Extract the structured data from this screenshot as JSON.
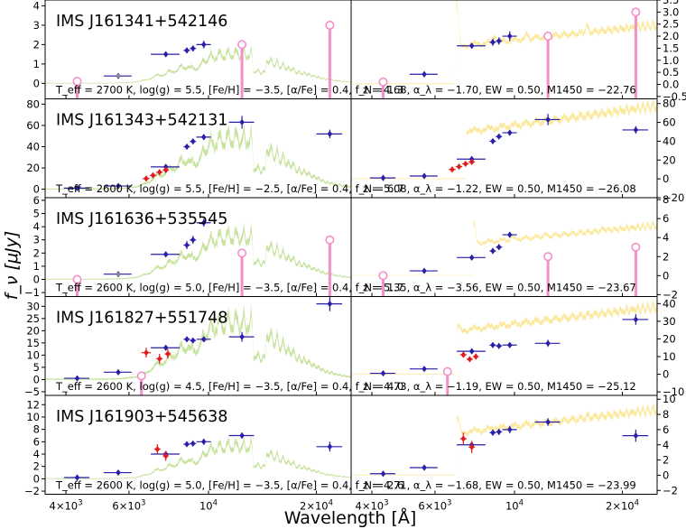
{
  "figure": {
    "xlabel": "Wavelength [Å]",
    "ylabel": "f_ν [μJy]",
    "xticks": [
      {
        "value": 4000,
        "base": "4×10",
        "exp": "3"
      },
      {
        "value": 6000,
        "base": "6×10",
        "exp": "3"
      },
      {
        "value": 10000,
        "base": "10",
        "exp": "4"
      },
      {
        "value": 20000,
        "base": "2×10",
        "exp": "4"
      }
    ],
    "xlim": [
      3500,
      25000
    ],
    "xscale": "log",
    "colors": {
      "bd_model": "#c9e3a0",
      "qso_model": "#fbe9a0",
      "detection": "#2a1fa8",
      "red_detection": "#e31a1c",
      "upper_limit": "#f48fc7",
      "grey_point": "#8a8a8a"
    }
  },
  "chart_data": [
    {
      "type": "scatter",
      "source": "IMS J161341+542146",
      "left_label": "T_eff = 2700 K, log(g) = 5.5, [Fe/H] = −3.5, [α/Fe] = 0.4, f_N = 1.3",
      "right_label": "z = 4.68, α_λ = −1.70, EW = 0.50, M1450 = −22.76",
      "left_ylim": [
        -0.8,
        4.3
      ],
      "left_yticks": [
        0,
        1,
        2,
        3,
        4
      ],
      "right_ylim": [
        -0.6,
        3.5
      ],
      "right_yticks": [
        -0.5,
        0.0,
        0.5,
        1.0,
        1.5,
        2.0,
        2.5,
        3.0,
        3.5
      ],
      "detections": [
        {
          "x": 5600,
          "y": 0.38,
          "dx": 500,
          "dy": 0.08
        },
        {
          "x": 7600,
          "y": 1.5,
          "dx": 700,
          "dy": 0.1
        },
        {
          "x": 8700,
          "y": 1.7,
          "dx": 180,
          "dy": 0.15
        },
        {
          "x": 9050,
          "y": 1.8,
          "dx": 180,
          "dy": 0.15
        },
        {
          "x": 9700,
          "y": 2.0,
          "dx": 450,
          "dy": 0.2
        }
      ],
      "red_points": [],
      "grey_points": [
        {
          "x": 5600,
          "y": 0.38
        }
      ],
      "upper_limits": [
        {
          "x": 4300,
          "y": 0.1
        },
        {
          "x": 12400,
          "y": 2.0
        },
        {
          "x": 21800,
          "y": 3.0
        }
      ],
      "right_detections": [
        {
          "x": 5600,
          "y": 0.42,
          "dx": 500,
          "dy": 0.08
        },
        {
          "x": 7600,
          "y": 1.6,
          "dx": 700,
          "dy": 0.1
        },
        {
          "x": 8700,
          "y": 1.75,
          "dx": 180,
          "dy": 0.15
        },
        {
          "x": 9050,
          "y": 1.8,
          "dx": 180,
          "dy": 0.15
        },
        {
          "x": 9700,
          "y": 2.0,
          "dx": 450,
          "dy": 0.2
        }
      ],
      "right_red_points": [],
      "right_upper_limits": [
        {
          "x": 4300,
          "y": 0.1
        },
        {
          "x": 12400,
          "y": 2.0
        },
        {
          "x": 21800,
          "y": 3.0
        }
      ]
    },
    {
      "type": "scatter",
      "source": "IMS J161343+542131",
      "left_label": "T_eff = 2600 K, log(g) = 5.5, [Fe/H] = −2.5, [α/Fe] = 0.4, f_N = 6.7",
      "right_label": "z = 5.08, α_λ = −1.22, EW = 0.50, M1450 = −26.08",
      "left_ylim": [
        -8,
        85
      ],
      "left_yticks": [
        0,
        20,
        40,
        60,
        80
      ],
      "right_ylim": [
        -20,
        85
      ],
      "right_yticks": [
        -20,
        0,
        20,
        40,
        60,
        80
      ],
      "detections": [
        {
          "x": 4300,
          "y": 1.0,
          "dx": 350,
          "dy": 0.8
        },
        {
          "x": 5600,
          "y": 3.0,
          "dx": 500,
          "dy": 1.0
        },
        {
          "x": 7600,
          "y": 21.0,
          "dx": 700,
          "dy": 1.5
        },
        {
          "x": 8700,
          "y": 40.0,
          "dx": 180,
          "dy": 2.0
        },
        {
          "x": 9050,
          "y": 45.0,
          "dx": 180,
          "dy": 2.0
        },
        {
          "x": 9700,
          "y": 49.0,
          "dx": 450,
          "dy": 2.5
        },
        {
          "x": 12400,
          "y": 63.0,
          "dx": 1000,
          "dy": 6.0
        },
        {
          "x": 21800,
          "y": 52.0,
          "dx": 1800,
          "dy": 4.0
        }
      ],
      "red_points": [
        {
          "x": 6700,
          "y": 10.0,
          "dx": 150,
          "dy": 1.5
        },
        {
          "x": 7000,
          "y": 13.0,
          "dx": 150,
          "dy": 1.5
        },
        {
          "x": 7300,
          "y": 16.0,
          "dx": 150,
          "dy": 1.5
        },
        {
          "x": 7600,
          "y": 18.0,
          "dx": 150,
          "dy": 1.5
        }
      ],
      "grey_points": [],
      "upper_limits": [],
      "right_detections": [
        {
          "x": 4300,
          "y": 1.0,
          "dx": 350,
          "dy": 0.8
        },
        {
          "x": 5600,
          "y": 3.0,
          "dx": 500,
          "dy": 1.0
        },
        {
          "x": 7600,
          "y": 21.0,
          "dx": 700,
          "dy": 1.5
        },
        {
          "x": 8700,
          "y": 40.0,
          "dx": 180,
          "dy": 2.0
        },
        {
          "x": 9050,
          "y": 45.0,
          "dx": 180,
          "dy": 2.0
        },
        {
          "x": 9700,
          "y": 49.0,
          "dx": 450,
          "dy": 2.5
        },
        {
          "x": 12400,
          "y": 63.0,
          "dx": 1000,
          "dy": 6.0
        },
        {
          "x": 21800,
          "y": 52.0,
          "dx": 1800,
          "dy": 4.0
        }
      ],
      "right_red_points": [
        {
          "x": 6700,
          "y": 10.0,
          "dx": 150,
          "dy": 1.5
        },
        {
          "x": 7000,
          "y": 13.0,
          "dx": 150,
          "dy": 1.5
        },
        {
          "x": 7300,
          "y": 16.0,
          "dx": 150,
          "dy": 1.5
        },
        {
          "x": 7600,
          "y": 18.0,
          "dx": 150,
          "dy": 1.5
        }
      ],
      "right_upper_limits": []
    },
    {
      "type": "scatter",
      "source": "IMS J161636+535545",
      "left_label": "T_eff = 2600 K, log(g) = 5.0, [Fe/H] = −3.5, [α/Fe] = 0.4, f_N = 1.7",
      "right_label": "z = 5.35, α_λ = −3.56, EW = 0.50, M1450 = −23.67",
      "left_ylim": [
        -1.3,
        6.2
      ],
      "left_yticks": [
        -1,
        0,
        1,
        2,
        3,
        4,
        5,
        6
      ],
      "right_ylim": [
        -2.2,
        8.2
      ],
      "right_yticks": [
        -2,
        0,
        2,
        4,
        6,
        8
      ],
      "detections": [
        {
          "x": 5600,
          "y": 0.4,
          "dx": 500,
          "dy": 0.1
        },
        {
          "x": 7600,
          "y": 1.9,
          "dx": 700,
          "dy": 0.1
        },
        {
          "x": 8700,
          "y": 2.6,
          "dx": 180,
          "dy": 0.3
        },
        {
          "x": 9050,
          "y": 3.0,
          "dx": 180,
          "dy": 0.3
        },
        {
          "x": 9700,
          "y": 4.3,
          "dx": 450,
          "dy": 0.3
        }
      ],
      "red_points": [],
      "grey_points": [
        {
          "x": 5600,
          "y": 0.4
        }
      ],
      "upper_limits": [
        {
          "x": 4300,
          "y": 0.0
        },
        {
          "x": 12400,
          "y": 2.0
        },
        {
          "x": 21800,
          "y": 3.0
        }
      ],
      "right_detections": [
        {
          "x": 5600,
          "y": 0.5,
          "dx": 500,
          "dy": 0.1
        },
        {
          "x": 7600,
          "y": 1.9,
          "dx": 700,
          "dy": 0.1
        },
        {
          "x": 8700,
          "y": 2.6,
          "dx": 180,
          "dy": 0.3
        },
        {
          "x": 9050,
          "y": 3.0,
          "dx": 180,
          "dy": 0.3
        },
        {
          "x": 9700,
          "y": 4.3,
          "dx": 450,
          "dy": 0.3
        }
      ],
      "right_red_points": [],
      "right_upper_limits": [
        {
          "x": 4300,
          "y": 0.0
        },
        {
          "x": 12400,
          "y": 2.0
        },
        {
          "x": 21800,
          "y": 3.0
        }
      ]
    },
    {
      "type": "scatter",
      "source": "IMS J161827+551748",
      "left_label": "T_eff = 2600 K, log(g) = 4.5, [Fe/H] = −3.5, [α/Fe] = 0.4, f_N = 4.0",
      "right_label": "z = 4.73, α_λ = −1.19, EW = 0.50, M1450 = −25.12",
      "left_ylim": [
        -6.5,
        34
      ],
      "left_yticks": [
        -5,
        0,
        5,
        10,
        15,
        20,
        25,
        30
      ],
      "right_ylim": [
        -12,
        44
      ],
      "right_yticks": [
        -10,
        0,
        10,
        20,
        30,
        40
      ],
      "detections": [
        {
          "x": 4300,
          "y": 0.5,
          "dx": 350,
          "dy": 0.5
        },
        {
          "x": 5600,
          "y": 3.0,
          "dx": 500,
          "dy": 0.5
        },
        {
          "x": 7600,
          "y": 13.0,
          "dx": 700,
          "dy": 1.0
        },
        {
          "x": 8700,
          "y": 16.5,
          "dx": 180,
          "dy": 1.0
        },
        {
          "x": 9050,
          "y": 16.0,
          "dx": 180,
          "dy": 1.0
        },
        {
          "x": 9700,
          "y": 16.5,
          "dx": 450,
          "dy": 1.0
        },
        {
          "x": 12400,
          "y": 17.5,
          "dx": 1000,
          "dy": 2.0
        },
        {
          "x": 21800,
          "y": 31.0,
          "dx": 1800,
          "dy": 3.0
        }
      ],
      "red_points": [
        {
          "x": 6700,
          "y": 11.0,
          "dx": 200,
          "dy": 2.0
        },
        {
          "x": 7300,
          "y": 8.5,
          "dx": 150,
          "dy": 2.0
        },
        {
          "x": 7700,
          "y": 10.5,
          "dx": 150,
          "dy": 2.0
        }
      ],
      "grey_points": [],
      "upper_limits": [
        {
          "x": 6500,
          "y": 1.5
        }
      ],
      "right_detections": [
        {
          "x": 4300,
          "y": 0.5,
          "dx": 350,
          "dy": 0.5
        },
        {
          "x": 5600,
          "y": 3.0,
          "dx": 500,
          "dy": 0.5
        },
        {
          "x": 7600,
          "y": 13.0,
          "dx": 700,
          "dy": 1.0
        },
        {
          "x": 8700,
          "y": 16.5,
          "dx": 180,
          "dy": 1.0
        },
        {
          "x": 9050,
          "y": 16.0,
          "dx": 180,
          "dy": 1.0
        },
        {
          "x": 9700,
          "y": 16.5,
          "dx": 450,
          "dy": 1.0
        },
        {
          "x": 12400,
          "y": 17.5,
          "dx": 1000,
          "dy": 2.0
        },
        {
          "x": 21800,
          "y": 31.0,
          "dx": 1800,
          "dy": 3.0
        }
      ],
      "right_red_points": [
        {
          "x": 7200,
          "y": 11.0,
          "dx": 150,
          "dy": 1.5
        },
        {
          "x": 7500,
          "y": 8.5,
          "dx": 150,
          "dy": 1.5
        },
        {
          "x": 7800,
          "y": 10.0,
          "dx": 150,
          "dy": 1.5
        }
      ],
      "right_upper_limits": [
        {
          "x": 6500,
          "y": 1.5
        }
      ]
    },
    {
      "type": "scatter",
      "source": "IMS J161903+545638",
      "left_label": "T_eff = 2600 K, log(g) = 5.0, [Fe/H] = −3.5, [α/Fe] = 0.4, f_N = 2.6",
      "right_label": "z = 4.71, α_λ = −1.68, EW = 0.50, M1450 = −23.99",
      "left_ylim": [
        -2.5,
        13.5
      ],
      "left_yticks": [
        -2,
        0,
        2,
        4,
        6,
        8,
        10,
        12
      ],
      "right_ylim": [
        -2.5,
        10.5
      ],
      "right_yticks": [
        -2,
        0,
        2,
        4,
        6,
        8,
        10
      ],
      "detections": [
        {
          "x": 4300,
          "y": 0.2,
          "dx": 350,
          "dy": 0.2
        },
        {
          "x": 5600,
          "y": 1.0,
          "dx": 500,
          "dy": 0.2
        },
        {
          "x": 7600,
          "y": 4.0,
          "dx": 700,
          "dy": 0.3
        },
        {
          "x": 8700,
          "y": 5.6,
          "dx": 180,
          "dy": 0.4
        },
        {
          "x": 9050,
          "y": 5.7,
          "dx": 180,
          "dy": 0.4
        },
        {
          "x": 9700,
          "y": 6.0,
          "dx": 450,
          "dy": 0.5
        },
        {
          "x": 12400,
          "y": 7.0,
          "dx": 1000,
          "dy": 0.5
        },
        {
          "x": 21800,
          "y": 5.2,
          "dx": 1800,
          "dy": 0.8
        }
      ],
      "red_points": [
        {
          "x": 7200,
          "y": 4.8,
          "dx": 150,
          "dy": 0.8
        },
        {
          "x": 7600,
          "y": 3.7,
          "dx": 150,
          "dy": 0.8
        }
      ],
      "grey_points": [],
      "upper_limits": [],
      "right_detections": [
        {
          "x": 4300,
          "y": 0.2,
          "dx": 350,
          "dy": 0.2
        },
        {
          "x": 5600,
          "y": 1.0,
          "dx": 500,
          "dy": 0.2
        },
        {
          "x": 7600,
          "y": 4.0,
          "dx": 700,
          "dy": 0.3
        },
        {
          "x": 8700,
          "y": 5.6,
          "dx": 180,
          "dy": 0.4
        },
        {
          "x": 9050,
          "y": 5.7,
          "dx": 180,
          "dy": 0.4
        },
        {
          "x": 9700,
          "y": 6.0,
          "dx": 450,
          "dy": 0.5
        },
        {
          "x": 12400,
          "y": 7.0,
          "dx": 1000,
          "dy": 0.5
        },
        {
          "x": 21800,
          "y": 5.2,
          "dx": 1800,
          "dy": 0.8
        }
      ],
      "right_red_points": [
        {
          "x": 7200,
          "y": 4.8,
          "dx": 150,
          "dy": 0.8
        },
        {
          "x": 7600,
          "y": 3.7,
          "dx": 150,
          "dy": 0.8
        }
      ],
      "right_upper_limits": []
    }
  ]
}
